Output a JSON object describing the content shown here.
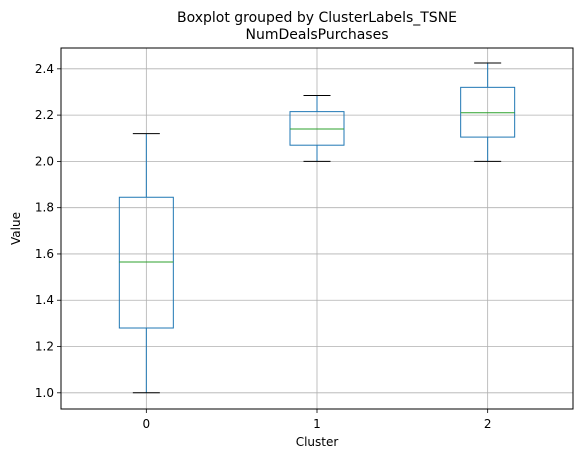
{
  "chart_data": {
    "type": "boxplot",
    "suptitle": "Boxplot grouped by ClusterLabels_TSNE",
    "title": "NumDealsPurchases",
    "xlabel": "Cluster",
    "ylabel": "Value",
    "categories": [
      "0",
      "1",
      "2"
    ],
    "ylim": [
      0.93,
      2.49
    ],
    "yticks": [
      1.0,
      1.2,
      1.4,
      1.6,
      1.8,
      2.0,
      2.2,
      2.4
    ],
    "ytick_labels": [
      "1.0",
      "1.2",
      "1.4",
      "1.6",
      "1.8",
      "2.0",
      "2.2",
      "2.4"
    ],
    "grid": true,
    "boxes": [
      {
        "category": "0",
        "whisker_low": 1.0,
        "q1": 1.28,
        "median": 1.565,
        "q3": 1.845,
        "whisker_high": 2.12
      },
      {
        "category": "1",
        "whisker_low": 2.0,
        "q1": 2.07,
        "median": 2.14,
        "q3": 2.215,
        "whisker_high": 2.285
      },
      {
        "category": "2",
        "whisker_low": 2.0,
        "q1": 2.105,
        "median": 2.21,
        "q3": 2.32,
        "whisker_high": 2.425
      }
    ],
    "colors": {
      "box": "#1f77b4",
      "median": "#2ca02c",
      "whisker_cap": "#000000",
      "grid": "#b0b0b0"
    }
  }
}
